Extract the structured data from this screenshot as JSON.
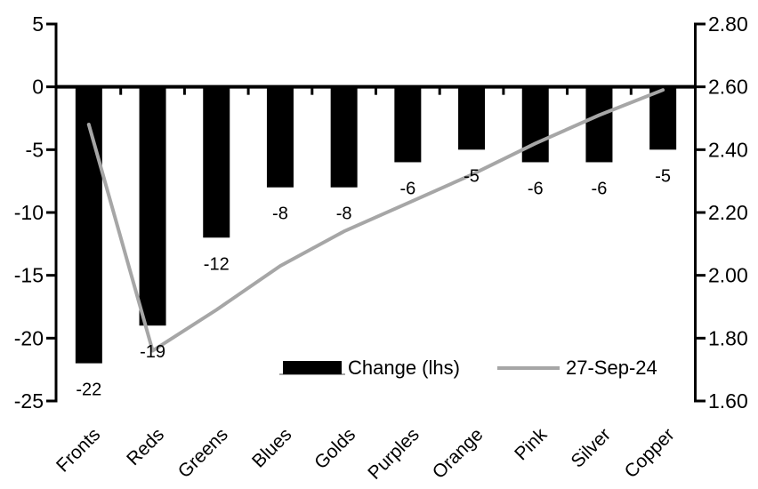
{
  "chart_data": {
    "type": "bar+line",
    "categories": [
      "Fronts",
      "Reds",
      "Greens",
      "Blues",
      "Golds",
      "Purples",
      "Orange",
      "Pink",
      "Silver",
      "Copper"
    ],
    "series": [
      {
        "name": "Change (lhs)",
        "type": "bar",
        "axis": "left",
        "color": "#000000",
        "values": [
          -22,
          -19,
          -12,
          -8,
          -8,
          -6,
          -5,
          -6,
          -6,
          -5
        ]
      },
      {
        "name": "27-Sep-24",
        "type": "line",
        "axis": "right",
        "color": "#a6a6a6",
        "values": [
          2.48,
          1.76,
          1.89,
          2.03,
          2.14,
          2.23,
          2.32,
          2.42,
          2.51,
          2.59
        ]
      }
    ],
    "bar_labels": [
      "-22",
      "-19",
      "-12",
      "-8",
      "-8",
      "-6",
      "-5",
      "-6",
      "-6",
      "-5"
    ],
    "left_axis": {
      "min": -25,
      "max": 5,
      "step": 5,
      "tick_labels": [
        "5",
        "0",
        "-5",
        "-10",
        "-15",
        "-20",
        "-25"
      ]
    },
    "right_axis": {
      "min": 1.6,
      "max": 2.8,
      "step": 0.2,
      "tick_labels": [
        "2.80",
        "2.60",
        "2.40",
        "2.20",
        "2.00",
        "1.80",
        "1.60"
      ]
    },
    "title": "",
    "xlabel": "",
    "ylabel": "",
    "grid": false,
    "legend_position": "bottom-inside",
    "legend": [
      {
        "label": "Change (lhs)",
        "swatch": "bar",
        "color": "#000000"
      },
      {
        "label": "27-Sep-24",
        "swatch": "line",
        "color": "#a6a6a6"
      }
    ]
  },
  "colors": {
    "background": "#ffffff",
    "bar": "#000000",
    "line": "#a6a6a6",
    "axis": "#000000",
    "text": "#000000"
  }
}
